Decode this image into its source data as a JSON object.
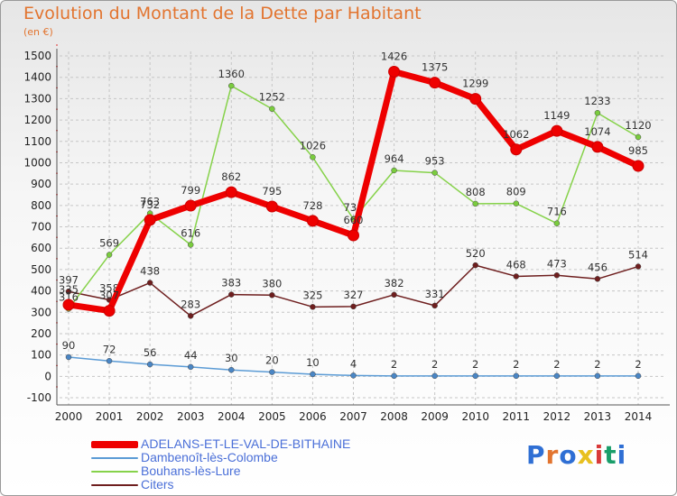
{
  "title": "Evolution du Montant de la Dette par Habitant",
  "unit_label": "(en €)",
  "logo": {
    "text": "Proxiti",
    "letter_colors": [
      "#2f6fd4",
      "#e2742f",
      "#2f6fd4",
      "#e8c020",
      "#d93a3a",
      "#1a9e6a",
      "#2f6fd4"
    ]
  },
  "chart_data": {
    "type": "line",
    "title": "Evolution du Montant de la Dette par Habitant",
    "ylabel": "(en €)",
    "xlabel": "",
    "x": [
      "2000",
      "2001",
      "2002",
      "2003",
      "2004",
      "2005",
      "2006",
      "2007",
      "2008",
      "2009",
      "2010",
      "2011",
      "2012",
      "2013",
      "2014"
    ],
    "ylim": [
      -100,
      1500
    ],
    "yticks": [
      "-100",
      "0",
      "100",
      "200",
      "300",
      "400",
      "500",
      "600",
      "700",
      "800",
      "900",
      "1000",
      "1100",
      "1200",
      "1300",
      "1400",
      "1500"
    ],
    "grid": true,
    "legend_position": "bottom-left",
    "series": [
      {
        "name": "Dambenoît-lès-Colombe",
        "color": "#5b9bd5",
        "values": [
          90,
          72,
          56,
          44,
          30,
          20,
          10,
          4,
          2,
          2,
          2,
          2,
          2,
          2,
          2
        ],
        "labels": [
          "90",
          "72",
          "56",
          "44",
          "30",
          "20",
          "10",
          "4",
          "2",
          "2",
          "2",
          "2",
          "2",
          "2",
          "2"
        ]
      },
      {
        "name": "Citers",
        "color": "#6e1e1e",
        "values": [
          397,
          358,
          438,
          283,
          383,
          380,
          325,
          327,
          382,
          331,
          520,
          468,
          473,
          456,
          514
        ],
        "labels": [
          "397",
          "358",
          "438",
          "283",
          "383",
          "380",
          "325",
          "327",
          "382",
          "331",
          "520",
          "468",
          "473",
          "456",
          "514"
        ]
      },
      {
        "name": "Bouhans-lès-Lure",
        "color": "#86d24a",
        "values": [
          316,
          569,
          763,
          616,
          1360,
          1252,
          1026,
          736,
          964,
          953,
          808,
          809,
          716,
          1233,
          1120
        ],
        "labels": [
          "316",
          "569",
          "763",
          "616",
          "1360",
          "1252",
          "1026",
          "736",
          "964",
          "953",
          "808",
          "809",
          "716",
          "1233",
          "1120"
        ]
      },
      {
        "name": "ADELANS-ET-LE-VAL-DE-BITHAINE",
        "color": "#ee0000",
        "values": [
          335,
          307,
          732,
          799,
          862,
          795,
          728,
          660,
          1426,
          1375,
          1299,
          1062,
          1149,
          1074,
          985
        ],
        "labels": [
          "335",
          "307",
          "732",
          "799",
          "862",
          "795",
          "728",
          "660",
          "1426",
          "1375",
          "1299",
          "1062",
          "1149",
          "1074",
          "985"
        ]
      }
    ]
  }
}
